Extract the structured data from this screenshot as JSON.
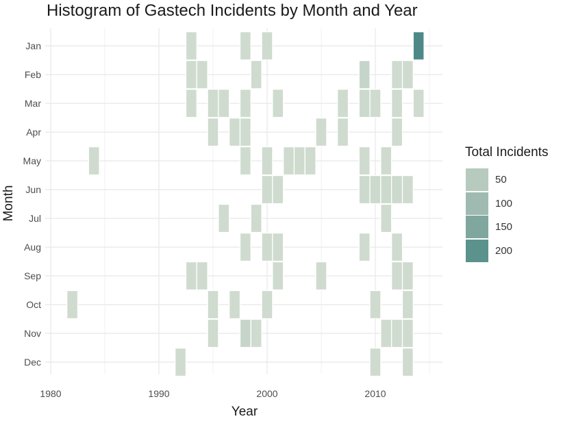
{
  "chart_data": {
    "type": "heatmap",
    "title": "Histogram of Gastech Incidents by Month and Year",
    "xlabel": "Year",
    "ylabel": "Month",
    "xlim": [
      1980,
      2016
    ],
    "x_ticks": [
      "1980",
      "1990",
      "2000",
      "2010"
    ],
    "months": [
      "Jan",
      "Feb",
      "Mar",
      "Apr",
      "May",
      "Jun",
      "Jul",
      "Aug",
      "Sep",
      "Oct",
      "Nov",
      "Dec"
    ],
    "grid": true,
    "legend": {
      "title": "Total Incidents",
      "placement": "right",
      "labels": [
        "50",
        "100",
        "150",
        "200"
      ],
      "colors": [
        "#b6cabe",
        "#9fbbb1",
        "#7fa79e",
        "#5b928c"
      ]
    },
    "color_low": "#cfdbcf",
    "color_high": "#4c8987",
    "cells": [
      {
        "year": 1982,
        "month": "Oct",
        "value": 10
      },
      {
        "year": 1984,
        "month": "May",
        "value": 10
      },
      {
        "year": 1992,
        "month": "Dec",
        "value": 10
      },
      {
        "year": 1993,
        "month": "Jan",
        "value": 10
      },
      {
        "year": 1993,
        "month": "Feb",
        "value": 10
      },
      {
        "year": 1993,
        "month": "Mar",
        "value": 10
      },
      {
        "year": 1993,
        "month": "Sep",
        "value": 10
      },
      {
        "year": 1994,
        "month": "Feb",
        "value": 10
      },
      {
        "year": 1994,
        "month": "Sep",
        "value": 10
      },
      {
        "year": 1995,
        "month": "Mar",
        "value": 10
      },
      {
        "year": 1995,
        "month": "Apr",
        "value": 10
      },
      {
        "year": 1995,
        "month": "Oct",
        "value": 10
      },
      {
        "year": 1995,
        "month": "Nov",
        "value": 10
      },
      {
        "year": 1996,
        "month": "Mar",
        "value": 10
      },
      {
        "year": 1996,
        "month": "Jul",
        "value": 10
      },
      {
        "year": 1997,
        "month": "Apr",
        "value": 10
      },
      {
        "year": 1997,
        "month": "Oct",
        "value": 10
      },
      {
        "year": 1998,
        "month": "Jan",
        "value": 10
      },
      {
        "year": 1998,
        "month": "Mar",
        "value": 10
      },
      {
        "year": 1998,
        "month": "Apr",
        "value": 10
      },
      {
        "year": 1998,
        "month": "May",
        "value": 10
      },
      {
        "year": 1998,
        "month": "Aug",
        "value": 10
      },
      {
        "year": 1998,
        "month": "Nov",
        "value": 25
      },
      {
        "year": 1999,
        "month": "Feb",
        "value": 10
      },
      {
        "year": 1999,
        "month": "Jul",
        "value": 10
      },
      {
        "year": 1999,
        "month": "Nov",
        "value": 10
      },
      {
        "year": 2000,
        "month": "Jan",
        "value": 10
      },
      {
        "year": 2000,
        "month": "May",
        "value": 10
      },
      {
        "year": 2000,
        "month": "Jun",
        "value": 10
      },
      {
        "year": 2000,
        "month": "Aug",
        "value": 10
      },
      {
        "year": 2000,
        "month": "Oct",
        "value": 10
      },
      {
        "year": 2001,
        "month": "Mar",
        "value": 10
      },
      {
        "year": 2001,
        "month": "Jun",
        "value": 10
      },
      {
        "year": 2001,
        "month": "Aug",
        "value": 10
      },
      {
        "year": 2001,
        "month": "Sep",
        "value": 10
      },
      {
        "year": 2002,
        "month": "May",
        "value": 10
      },
      {
        "year": 2003,
        "month": "May",
        "value": 10
      },
      {
        "year": 2004,
        "month": "May",
        "value": 10
      },
      {
        "year": 2005,
        "month": "Apr",
        "value": 10
      },
      {
        "year": 2005,
        "month": "Sep",
        "value": 10
      },
      {
        "year": 2007,
        "month": "Mar",
        "value": 10
      },
      {
        "year": 2007,
        "month": "Apr",
        "value": 10
      },
      {
        "year": 2009,
        "month": "Feb",
        "value": 25
      },
      {
        "year": 2009,
        "month": "Mar",
        "value": 15
      },
      {
        "year": 2009,
        "month": "May",
        "value": 10
      },
      {
        "year": 2009,
        "month": "Jun",
        "value": 15
      },
      {
        "year": 2009,
        "month": "Aug",
        "value": 10
      },
      {
        "year": 2010,
        "month": "Mar",
        "value": 10
      },
      {
        "year": 2010,
        "month": "Jun",
        "value": 15
      },
      {
        "year": 2010,
        "month": "Oct",
        "value": 10
      },
      {
        "year": 2010,
        "month": "Dec",
        "value": 10
      },
      {
        "year": 2011,
        "month": "May",
        "value": 10
      },
      {
        "year": 2011,
        "month": "Jun",
        "value": 15
      },
      {
        "year": 2011,
        "month": "Jul",
        "value": 10
      },
      {
        "year": 2011,
        "month": "Nov",
        "value": 10
      },
      {
        "year": 2012,
        "month": "Feb",
        "value": 10
      },
      {
        "year": 2012,
        "month": "Mar",
        "value": 10
      },
      {
        "year": 2012,
        "month": "Apr",
        "value": 10
      },
      {
        "year": 2012,
        "month": "Jun",
        "value": 15
      },
      {
        "year": 2012,
        "month": "Aug",
        "value": 10
      },
      {
        "year": 2012,
        "month": "Sep",
        "value": 10
      },
      {
        "year": 2012,
        "month": "Nov",
        "value": 10
      },
      {
        "year": 2013,
        "month": "Feb",
        "value": 10
      },
      {
        "year": 2013,
        "month": "Jun",
        "value": 10
      },
      {
        "year": 2013,
        "month": "Sep",
        "value": 10
      },
      {
        "year": 2013,
        "month": "Oct",
        "value": 10
      },
      {
        "year": 2013,
        "month": "Nov",
        "value": 10
      },
      {
        "year": 2013,
        "month": "Dec",
        "value": 10
      },
      {
        "year": 2014,
        "month": "Jan",
        "value": 230
      },
      {
        "year": 2014,
        "month": "Mar",
        "value": 10
      }
    ]
  }
}
